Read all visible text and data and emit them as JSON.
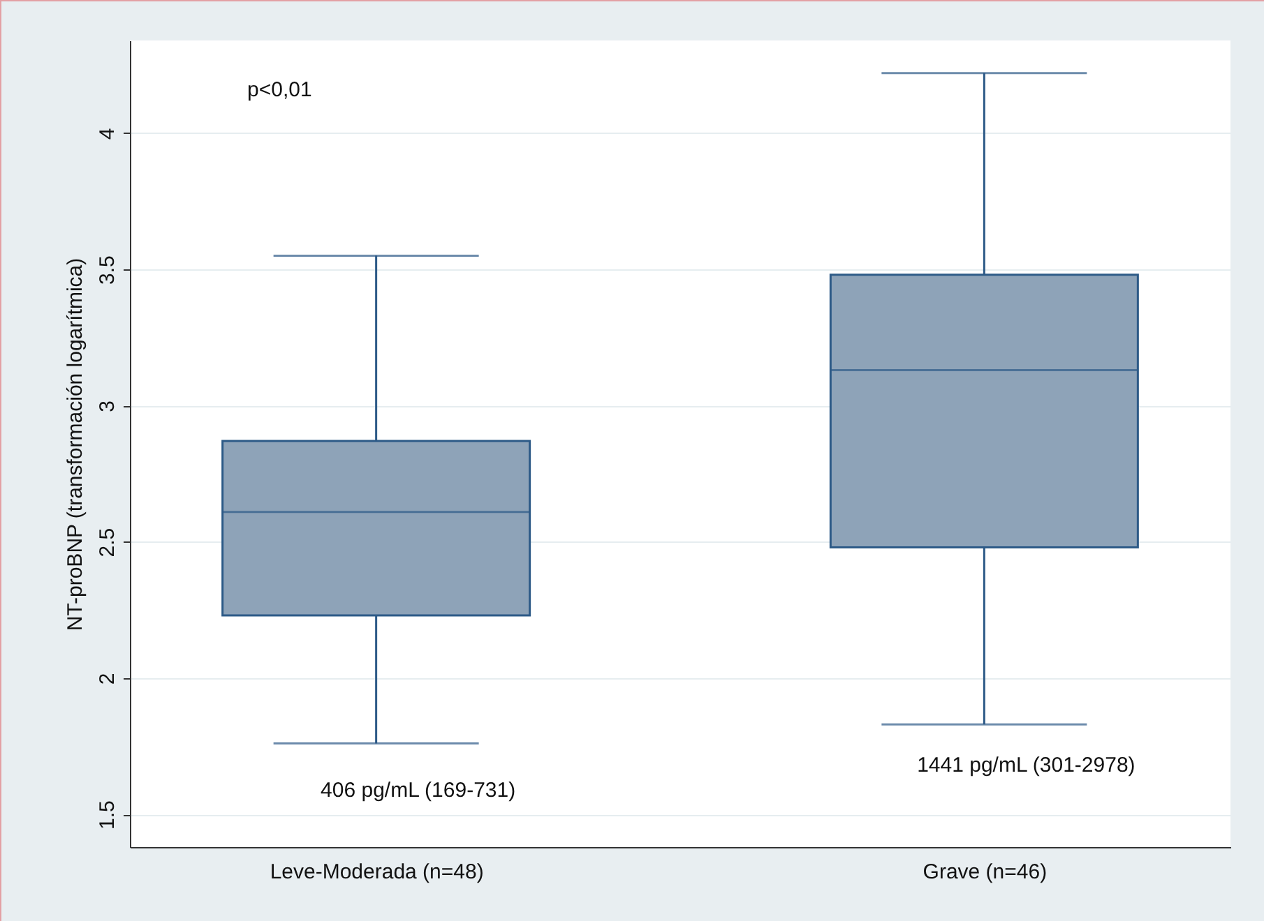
{
  "chart_data": {
    "type": "box",
    "ylabel": "NT-proBNP (transformación logarítmica)",
    "categories": [
      "Leve-Moderada (n=48)",
      "Grave (n=46)"
    ],
    "boxes": [
      {
        "low": 1.76,
        "q1": 2.23,
        "median": 2.61,
        "q3": 2.87,
        "high": 3.55
      },
      {
        "low": 1.83,
        "q1": 2.48,
        "median": 3.13,
        "q3": 3.48,
        "high": 4.22
      }
    ],
    "colors": [
      "#8ea3b8",
      "#8ea3b8"
    ],
    "ylim": [
      1.38,
      4.34
    ],
    "yticks": [
      1.5,
      2,
      2.5,
      3,
      3.5,
      4
    ],
    "grid": "y",
    "annotations": [
      "p<0,01",
      "406 pg/mL (169-731)",
      "1441 pg/mL (301-2978)"
    ]
  }
}
